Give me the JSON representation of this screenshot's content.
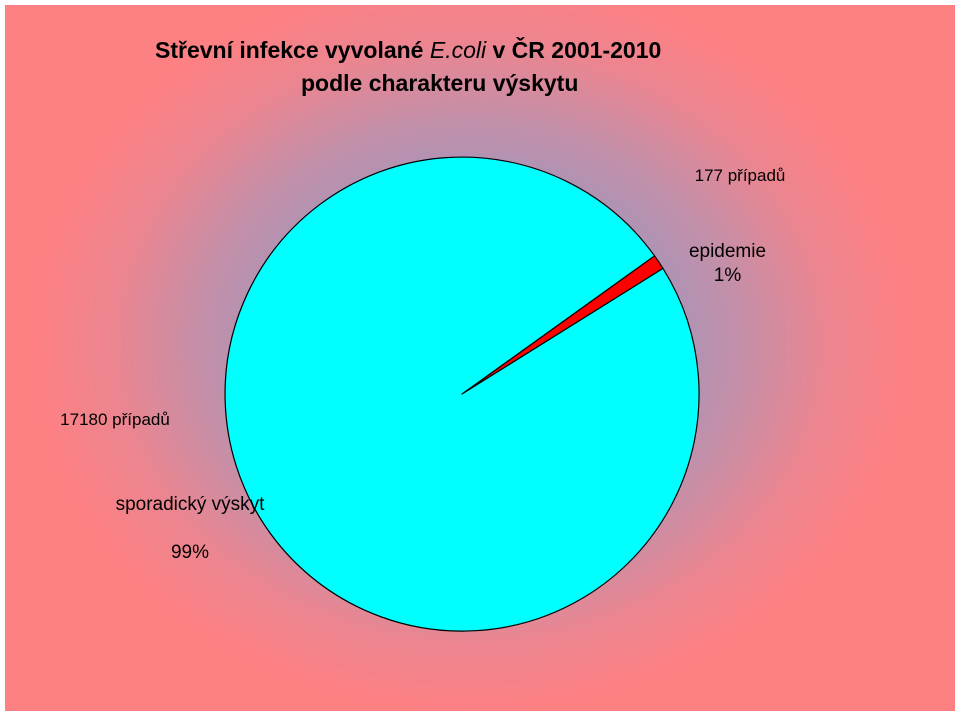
{
  "title": {
    "part1": "Střevní  infekce vyvolané ",
    "part2": "E.coli",
    "part3": "  v ČR 2001-2010",
    "line2": "podle charakteru výskytu"
  },
  "chart_data": {
    "type": "pie",
    "title": "Střevní  infekce vyvolané E.coli  v ČR 2001-2010 podle charakteru výskytu",
    "slices": [
      {
        "name": "epidemie",
        "value": 177,
        "count_label": "177 případů",
        "percent_label": "1%",
        "color": "#ff0000"
      },
      {
        "name": "sporadický výskyt",
        "value": 17180,
        "count_label": "17180 případů",
        "percent_label": "99%",
        "color": "#00ffff"
      }
    ]
  }
}
